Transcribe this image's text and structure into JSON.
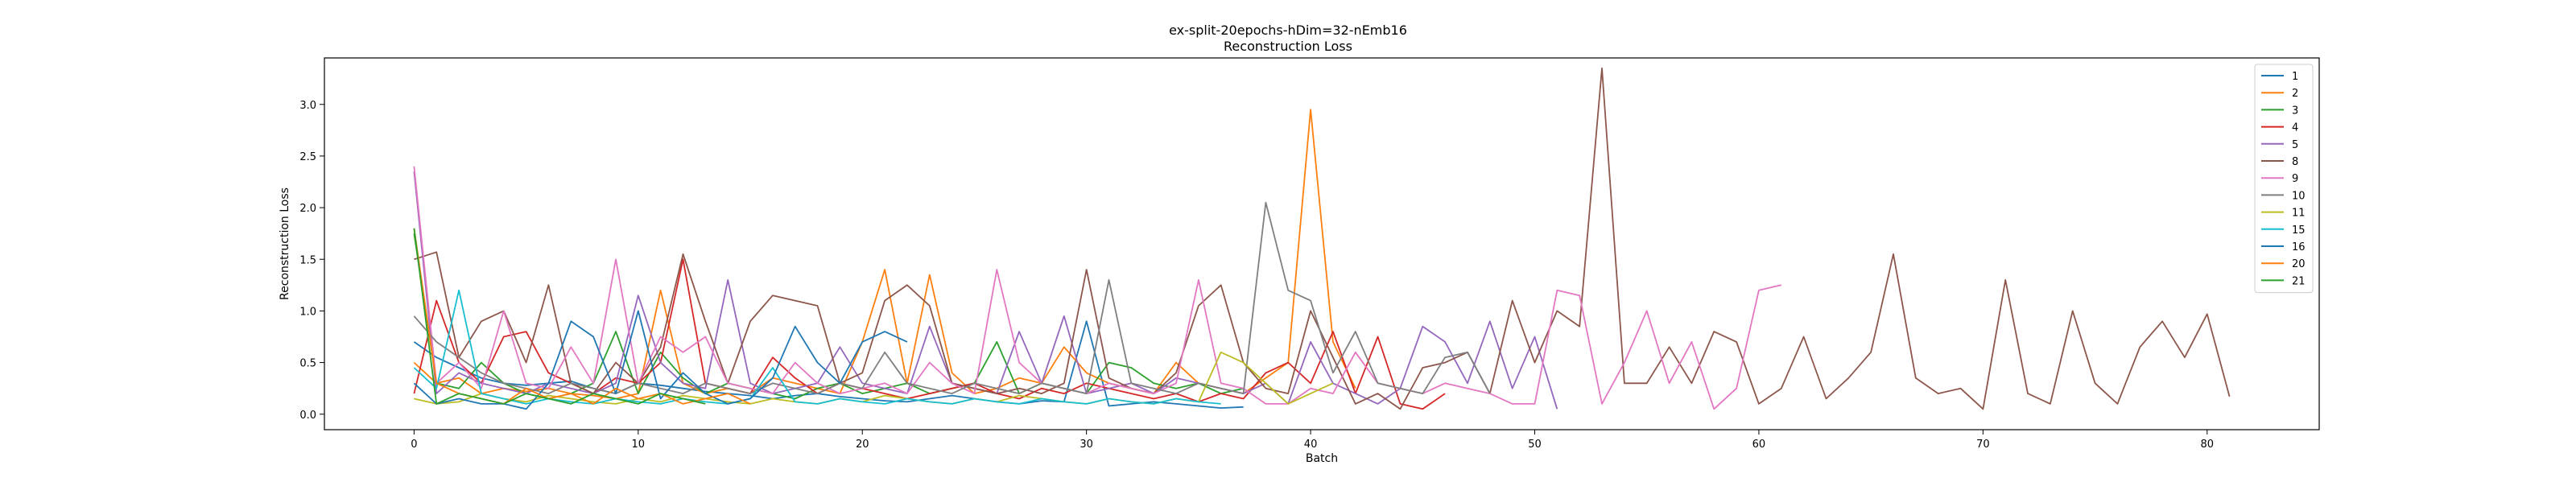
{
  "chart_data": {
    "type": "line",
    "title": "ex-split-20epochs-hDim=32-nEmb16",
    "subtitle": "Reconstruction Loss",
    "xlabel": "Batch",
    "ylabel": "Reconstruction Loss",
    "xlim": [
      -4,
      85
    ],
    "ylim": [
      -0.15,
      3.45
    ],
    "x_ticks": [
      0,
      10,
      20,
      30,
      40,
      50,
      60,
      70,
      80
    ],
    "y_ticks": [
      0.0,
      0.5,
      1.0,
      1.5,
      2.0,
      2.5,
      3.0
    ],
    "grid": false,
    "legend_position": "top-right",
    "series": [
      {
        "name": "1",
        "color": "#1f77b4",
        "values": [
          0.7,
          0.55,
          0.45,
          0.35,
          0.3,
          0.28,
          0.3,
          0.32,
          0.25,
          0.2,
          0.3,
          0.28,
          0.25,
          0.22,
          0.2,
          0.18,
          0.15,
          0.18,
          0.2,
          0.17,
          0.15,
          0.13,
          0.12,
          0.15,
          0.18,
          0.15,
          0.12,
          0.1,
          0.13,
          0.12,
          0.9,
          0.08,
          0.1,
          0.12,
          0.1,
          0.08,
          0.06,
          0.07
        ]
      },
      {
        "name": "2",
        "color": "#ff7f0e",
        "values": [
          0.5,
          0.3,
          0.35,
          0.2,
          0.25,
          0.22,
          0.25,
          0.2,
          0.18,
          0.15,
          0.2,
          1.2,
          0.3,
          0.2,
          0.25,
          0.2,
          0.35,
          0.3,
          0.25,
          0.2,
          0.7,
          1.4,
          0.3,
          1.35,
          0.4,
          0.2,
          0.25,
          0.35,
          0.3,
          0.65,
          0.4,
          0.3,
          0.25,
          0.2,
          0.5,
          0.3,
          0.25,
          0.2,
          0.35,
          0.5,
          2.95,
          0.7,
          0.25
        ]
      },
      {
        "name": "3",
        "color": "#2ca02c",
        "values": [
          1.75,
          0.3,
          0.25,
          0.5,
          0.3,
          0.2,
          0.15,
          0.2,
          0.3,
          0.8,
          0.2,
          0.6,
          0.35,
          0.2,
          0.3,
          0.25,
          0.2,
          0.15,
          0.25,
          0.3,
          0.2,
          0.25,
          0.3,
          0.2,
          0.25,
          0.3,
          0.7,
          0.2,
          0.3,
          0.25,
          0.2,
          0.5,
          0.45,
          0.3,
          0.25,
          0.3,
          0.2,
          0.25
        ]
      },
      {
        "name": "4",
        "color": "#d62728",
        "values": [
          0.2,
          1.1,
          0.5,
          0.3,
          0.75,
          0.8,
          0.4,
          0.3,
          0.2,
          0.35,
          0.3,
          0.5,
          1.5,
          0.3,
          0.25,
          0.2,
          0.55,
          0.35,
          0.2,
          0.3,
          0.25,
          0.2,
          0.15,
          0.2,
          0.25,
          0.3,
          0.2,
          0.15,
          0.25,
          0.2,
          0.3,
          0.25,
          0.2,
          0.15,
          0.2,
          0.12,
          0.2,
          0.15,
          0.4,
          0.5,
          0.3,
          0.8,
          0.2,
          0.75,
          0.1,
          0.05,
          0.2
        ]
      },
      {
        "name": "5",
        "color": "#9467bd",
        "values": [
          2.35,
          0.2,
          0.4,
          0.3,
          0.25,
          0.2,
          0.3,
          0.25,
          0.2,
          0.3,
          1.15,
          0.5,
          0.3,
          0.25,
          1.3,
          0.3,
          0.2,
          0.25,
          0.3,
          0.65,
          0.3,
          0.25,
          0.2,
          0.85,
          0.3,
          0.25,
          0.2,
          0.8,
          0.3,
          0.95,
          0.2,
          0.25,
          0.3,
          0.2,
          0.35,
          0.3,
          0.25,
          0.2,
          0.3,
          0.1,
          0.7,
          0.3,
          0.2,
          0.1,
          0.25,
          0.85,
          0.7,
          0.3,
          0.9,
          0.25,
          0.75,
          0.05
        ]
      },
      {
        "name": "8",
        "color": "#8c564b",
        "values": [
          1.5,
          1.57,
          0.55,
          0.9,
          1.0,
          0.5,
          1.25,
          0.3,
          0.2,
          0.5,
          0.3,
          0.65,
          1.55,
          0.9,
          0.3,
          0.9,
          1.15,
          1.1,
          1.05,
          0.3,
          0.4,
          1.1,
          1.25,
          1.05,
          0.3,
          0.25,
          0.2,
          0.25,
          0.2,
          0.3,
          1.4,
          0.35,
          0.25,
          0.2,
          0.4,
          1.05,
          1.25,
          0.5,
          0.25,
          0.2,
          1.0,
          0.55,
          0.1,
          0.2,
          0.05,
          0.45,
          0.5,
          0.6,
          0.2,
          1.1,
          0.5,
          1.0,
          0.85,
          3.35,
          0.3,
          0.3,
          0.65,
          0.3,
          0.8,
          0.7,
          0.1,
          0.25,
          0.75,
          0.15,
          0.35,
          0.6,
          1.55,
          0.35,
          0.2,
          0.25,
          0.05,
          1.3,
          0.2,
          0.1,
          1.0,
          0.3,
          0.1,
          0.65,
          0.9,
          0.55,
          0.97,
          0.17
        ]
      },
      {
        "name": "9",
        "color": "#e377c2",
        "values": [
          2.4,
          0.3,
          0.5,
          0.25,
          1.0,
          0.3,
          0.25,
          0.65,
          0.3,
          1.5,
          0.3,
          0.75,
          0.6,
          0.75,
          0.3,
          0.25,
          0.2,
          0.5,
          0.3,
          0.2,
          0.25,
          0.3,
          0.2,
          0.5,
          0.3,
          0.2,
          1.4,
          0.5,
          0.3,
          0.25,
          0.2,
          0.3,
          0.25,
          0.2,
          0.3,
          1.3,
          0.3,
          0.25,
          0.1,
          0.1,
          0.25,
          0.2,
          0.6,
          0.3,
          0.25,
          0.2,
          0.3,
          0.25,
          0.2,
          0.1,
          0.1,
          1.2,
          1.15,
          0.1,
          0.5,
          1.0,
          0.3,
          0.7,
          0.05,
          0.25,
          1.2,
          1.25
        ]
      },
      {
        "name": "10",
        "color": "#7f7f7f",
        "values": [
          0.95,
          0.7,
          0.55,
          0.4,
          0.3,
          0.25,
          0.2,
          0.3,
          0.25,
          0.2,
          0.3,
          0.25,
          0.2,
          0.3,
          0.25,
          0.2,
          0.3,
          0.25,
          0.2,
          0.3,
          0.25,
          0.6,
          0.3,
          0.25,
          0.2,
          0.3,
          0.25,
          0.2,
          0.3,
          0.25,
          0.2,
          1.3,
          0.3,
          0.25,
          0.2,
          0.3,
          0.25,
          0.2,
          2.05,
          1.2,
          1.1,
          0.4,
          0.8,
          0.3,
          0.25,
          0.2,
          0.55,
          0.6,
          0.2
        ]
      },
      {
        "name": "11",
        "color": "#bcbd22",
        "values": [
          0.15,
          0.1,
          0.12,
          0.2,
          0.15,
          0.12,
          0.18,
          0.15,
          0.12,
          0.1,
          0.15,
          0.12,
          0.18,
          0.15,
          0.12,
          0.1,
          0.15,
          0.12,
          0.1,
          0.15,
          0.12,
          0.18,
          0.15,
          0.12,
          0.1,
          0.15,
          0.12,
          0.18,
          0.15,
          0.12,
          0.1,
          0.15,
          0.12,
          0.1,
          0.15,
          0.12,
          0.6,
          0.5,
          0.3,
          0.1,
          0.2,
          0.3
        ]
      },
      {
        "name": "15",
        "color": "#17becf",
        "values": [
          0.45,
          0.25,
          1.2,
          0.2,
          0.15,
          0.1,
          0.15,
          0.12,
          0.1,
          0.15,
          0.12,
          0.1,
          0.15,
          0.12,
          0.1,
          0.15,
          0.45,
          0.12,
          0.1,
          0.15,
          0.12,
          0.1,
          0.15,
          0.12,
          0.1,
          0.15,
          0.12,
          0.1,
          0.15,
          0.12,
          0.1,
          0.15,
          0.12,
          0.1,
          0.15,
          0.12,
          0.1
        ]
      },
      {
        "name": "16",
        "color": "#1f77b4",
        "values": [
          0.3,
          0.1,
          0.15,
          0.1,
          0.1,
          0.05,
          0.3,
          0.9,
          0.75,
          0.2,
          1.0,
          0.15,
          0.4,
          0.2,
          0.1,
          0.15,
          0.35,
          0.85,
          0.5,
          0.3,
          0.7,
          0.8,
          0.7
        ]
      },
      {
        "name": "20",
        "color": "#ff7f0e",
        "values": [
          1.8,
          0.3,
          0.2,
          0.15,
          0.1,
          0.25,
          0.15,
          0.2,
          0.1,
          0.25,
          0.15,
          0.2,
          0.1,
          0.15,
          0.2,
          0.1
        ]
      },
      {
        "name": "21",
        "color": "#2ca02c",
        "values": [
          1.8,
          0.1,
          0.2,
          0.15,
          0.1,
          0.2,
          0.15,
          0.1,
          0.2,
          0.15,
          0.1,
          0.2,
          0.15,
          0.1
        ]
      }
    ]
  }
}
